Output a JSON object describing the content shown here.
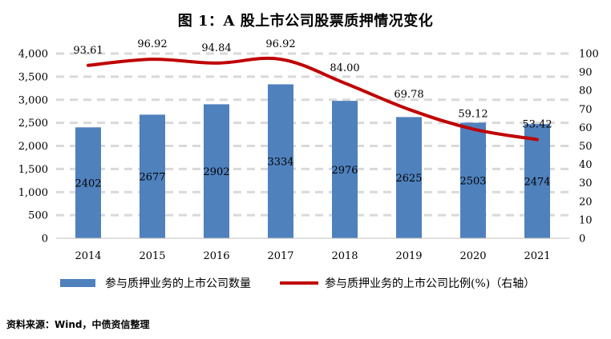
{
  "title": "图 1：A 股上市公司股票质押情况变化",
  "chart_data": {
    "type": "bar+line",
    "categories": [
      "2014",
      "2015",
      "2016",
      "2017",
      "2018",
      "2019",
      "2020",
      "2021"
    ],
    "series": [
      {
        "name": "参与质押业务的上市公司数量",
        "type": "bar",
        "axis": "left",
        "color": "#4f81bd",
        "values": [
          2402,
          2677,
          2902,
          3334,
          2976,
          2625,
          2503,
          2474
        ],
        "labels": [
          "2402",
          "2677",
          "2902",
          "3334",
          "2976",
          "2625",
          "2503",
          "2474"
        ]
      },
      {
        "name": "参与质押业务的上市公司比例(%)（右轴）",
        "type": "line",
        "axis": "right",
        "color": "#c00000",
        "values": [
          93.61,
          96.92,
          94.84,
          96.92,
          84.0,
          69.78,
          59.12,
          53.42
        ],
        "labels": [
          "93.61",
          "96.92",
          "94.84",
          "96.92",
          "84.00",
          "69.78",
          "59.12",
          "53.42"
        ]
      }
    ],
    "left_axis": {
      "ylim": [
        0,
        4000
      ],
      "ticks": [
        0,
        500,
        1000,
        1500,
        2000,
        2500,
        3000,
        3500,
        4000
      ],
      "tick_labels": [
        "0",
        "500",
        "1,000",
        "1,500",
        "2,000",
        "2,500",
        "3,000",
        "3,500",
        "4,000"
      ]
    },
    "right_axis": {
      "ylim": [
        0,
        100
      ],
      "ticks": [
        0,
        10,
        20,
        30,
        40,
        50,
        60,
        70,
        80,
        90,
        100
      ],
      "tick_labels": [
        "0",
        "10",
        "20",
        "30",
        "40",
        "50",
        "60",
        "70",
        "80",
        "90",
        "100"
      ]
    },
    "grid": true,
    "legend_position": "bottom"
  },
  "legend": {
    "bar_label": "参与质押业务的上市公司数量",
    "line_label": "参与质押业务的上市公司比例(%)（右轴）"
  },
  "source": "资料来源：Wind，中债资信整理"
}
